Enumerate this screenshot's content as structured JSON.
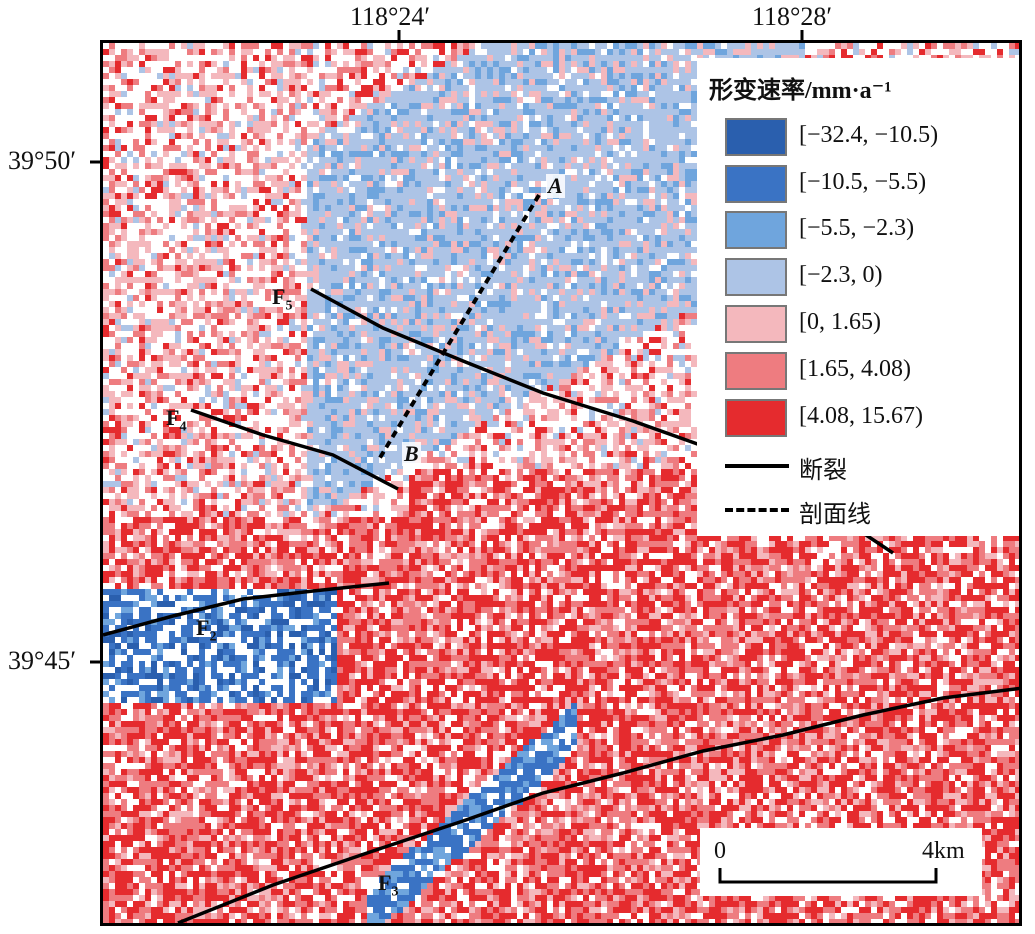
{
  "axes": {
    "lon_ticks": [
      "118°24′",
      "118°28′"
    ],
    "lat_ticks": [
      "39°50′",
      "39°45′"
    ]
  },
  "legend": {
    "title": "形变速率/mm·a⁻¹",
    "classes": [
      {
        "label": "[−32.4, −10.5)",
        "color": "#2a5fae"
      },
      {
        "label": "[−10.5, −5.5)",
        "color": "#3a73c4"
      },
      {
        "label": "[−5.5, −2.3)",
        "color": "#6fa5dd"
      },
      {
        "label": "[−2.3, 0)",
        "color": "#adc4e6"
      },
      {
        "label": "[0, 1.65)",
        "color": "#f4b8bd"
      },
      {
        "label": "[1.65, 4.08)",
        "color": "#ee7c80"
      },
      {
        "label": "[4.08, 15.67)",
        "color": "#e52b2e"
      }
    ],
    "fault_label": "断裂",
    "profile_label": "剖面线"
  },
  "faults": {
    "F5": {
      "letter": "F",
      "num": "5"
    },
    "F4": {
      "letter": "F",
      "num": "4"
    },
    "F2": {
      "letter": "F",
      "num": "2"
    },
    "F3": {
      "letter": "F",
      "num": "3"
    }
  },
  "profile": {
    "start": "A",
    "end": "B"
  },
  "scalebar": {
    "start": "0",
    "end": "4km"
  },
  "colors": {
    "fault": "#000000",
    "frame": "#000000"
  }
}
